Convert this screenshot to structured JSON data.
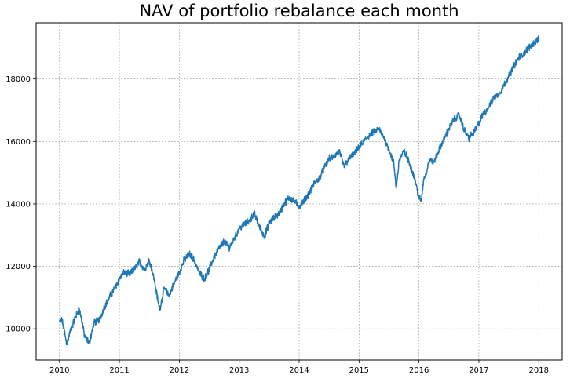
{
  "chart_data": {
    "type": "line",
    "title": "NAV of portfolio rebalance each month",
    "xlabel": "",
    "ylabel": "",
    "xlim": [
      2009.61,
      2018.39
    ],
    "ylim": [
      9000,
      19800
    ],
    "grid": true,
    "legend": "none",
    "line_color": "#1f77b4",
    "x_ticks": [
      2010,
      2011,
      2012,
      2013,
      2014,
      2015,
      2016,
      2017,
      2018
    ],
    "x_tick_labels": [
      "2010",
      "2011",
      "2012",
      "2013",
      "2014",
      "2015",
      "2016",
      "2017",
      "2018"
    ],
    "y_ticks": [
      10000,
      12000,
      14000,
      16000,
      18000
    ],
    "y_tick_labels": [
      "10000",
      "12000",
      "14000",
      "16000",
      "18000"
    ],
    "series": [
      {
        "x": [
          2010.0,
          2010.04,
          2010.08,
          2010.12,
          2010.17,
          2010.25,
          2010.33,
          2010.38,
          2010.42,
          2010.5,
          2010.54,
          2010.58,
          2010.67,
          2010.75,
          2010.83,
          2010.92,
          2011.0,
          2011.08,
          2011.17,
          2011.25,
          2011.33,
          2011.42,
          2011.5,
          2011.58,
          2011.67,
          2011.75,
          2011.83,
          2011.92,
          2012.0,
          2012.08,
          2012.17,
          2012.25,
          2012.33,
          2012.42,
          2012.5,
          2012.58,
          2012.67,
          2012.75,
          2012.83,
          2012.92,
          2013.0,
          2013.08,
          2013.17,
          2013.25,
          2013.33,
          2013.42,
          2013.5,
          2013.58,
          2013.67,
          2013.75,
          2013.83,
          2013.92,
          2014.0,
          2014.08,
          2014.17,
          2014.25,
          2014.33,
          2014.42,
          2014.5,
          2014.58,
          2014.67,
          2014.75,
          2014.83,
          2014.92,
          2015.0,
          2015.08,
          2015.17,
          2015.25,
          2015.33,
          2015.42,
          2015.5,
          2015.58,
          2015.62,
          2015.67,
          2015.75,
          2015.83,
          2015.92,
          2016.0,
          2016.04,
          2016.08,
          2016.12,
          2016.17,
          2016.25,
          2016.33,
          2016.42,
          2016.5,
          2016.58,
          2016.67,
          2016.75,
          2016.83,
          2016.92,
          2017.0,
          2017.08,
          2017.17,
          2017.25,
          2017.33,
          2017.42,
          2017.5,
          2017.58,
          2017.67,
          2017.75,
          2017.83,
          2017.92,
          2018.0
        ],
        "values": [
          10200,
          10280,
          9950,
          9500,
          9850,
          10300,
          10650,
          10200,
          9750,
          9550,
          9900,
          10200,
          10300,
          10700,
          11000,
          11300,
          11600,
          11800,
          11750,
          11900,
          12150,
          11900,
          12200,
          11600,
          10600,
          11300,
          11050,
          11500,
          11800,
          12200,
          12400,
          12200,
          11800,
          11600,
          11900,
          12300,
          12600,
          12800,
          12600,
          12900,
          13200,
          13350,
          13450,
          13700,
          13300,
          12950,
          13400,
          13550,
          13700,
          14000,
          14200,
          14100,
          13900,
          14100,
          14350,
          14650,
          14800,
          15150,
          15450,
          15500,
          15700,
          15200,
          15450,
          15600,
          15800,
          16000,
          16200,
          16300,
          16400,
          16100,
          15750,
          15300,
          14500,
          15400,
          15700,
          15350,
          14900,
          14200,
          14100,
          14800,
          15000,
          15400,
          15350,
          15700,
          16100,
          16400,
          16700,
          16850,
          16400,
          16100,
          16300,
          16600,
          16900,
          17100,
          17400,
          17500,
          17800,
          18100,
          18400,
          18700,
          18800,
          19000,
          19150,
          19300
        ]
      }
    ]
  }
}
